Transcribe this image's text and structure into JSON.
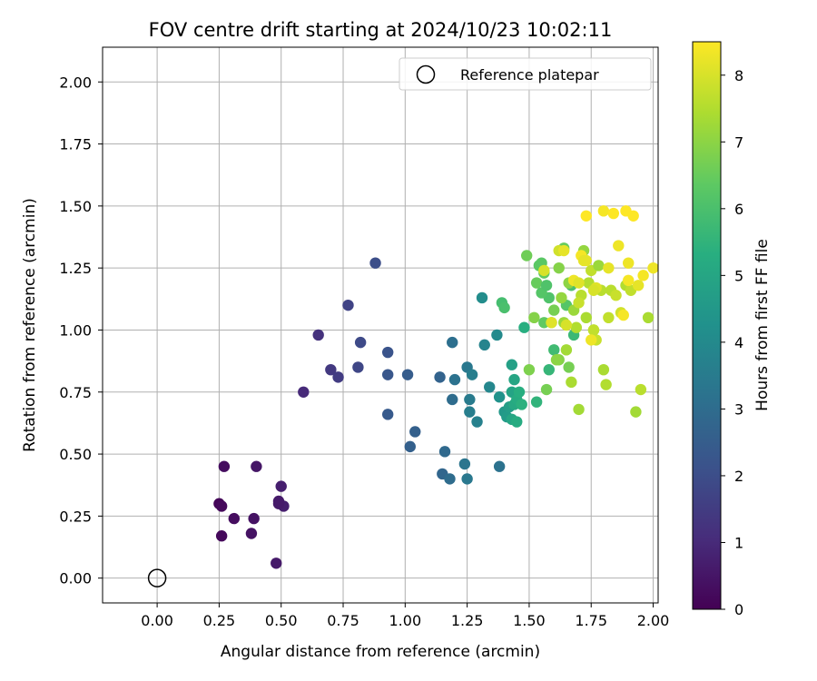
{
  "chart_data": {
    "type": "scatter",
    "title": "FOV centre drift starting at 2024/10/23 10:02:11",
    "xlabel": "Angular distance from reference (arcmin)",
    "ylabel": "Rotation from reference (arcmin)",
    "colorbar_label": "Hours from first FF file",
    "xlim": [
      -0.22,
      2.02
    ],
    "ylim": [
      -0.1,
      2.14
    ],
    "x_ticks": [
      "0.00",
      "0.25",
      "0.50",
      "0.75",
      "1.00",
      "1.25",
      "1.50",
      "1.75",
      "2.00"
    ],
    "y_ticks": [
      "0.00",
      "0.25",
      "0.50",
      "0.75",
      "1.00",
      "1.25",
      "1.50",
      "1.75",
      "2.00"
    ],
    "colorbar_ticks": [
      "0",
      "1",
      "2",
      "3",
      "4",
      "5",
      "6",
      "7",
      "8"
    ],
    "colorbar_range": [
      0,
      8.5
    ],
    "colormap": "viridis",
    "grid": true,
    "legend_position": "top-right",
    "legend_entry": "Reference platepar",
    "reference_point": {
      "x": 0.0,
      "y": 0.0
    },
    "series": [
      {
        "x": [
          0.25,
          0.26,
          0.27,
          0.31,
          0.38,
          0.39,
          0.4,
          0.48,
          0.49,
          0.5,
          0.51,
          0.26,
          0.49
        ],
        "y": [
          0.3,
          0.29,
          0.45,
          0.24,
          0.18,
          0.24,
          0.45,
          0.06,
          0.31,
          0.37,
          0.29,
          0.17,
          0.3
        ],
        "c": [
          0.1,
          0.2,
          0.3,
          0.3,
          0.4,
          0.4,
          0.5,
          0.6,
          0.6,
          0.7,
          0.7,
          0.2,
          0.6
        ]
      },
      {
        "x": [
          0.59,
          0.65,
          0.7,
          0.73,
          0.77,
          0.81,
          0.82,
          0.88,
          0.93,
          0.93,
          0.93,
          1.01
        ],
        "y": [
          0.75,
          0.98,
          0.84,
          0.81,
          1.1,
          0.85,
          0.95,
          1.27,
          0.91,
          0.82,
          0.66,
          0.82
        ],
        "c": [
          1.0,
          1.2,
          1.4,
          1.5,
          1.7,
          1.8,
          1.9,
          2.0,
          2.2,
          2.3,
          2.4,
          2.5
        ]
      },
      {
        "x": [
          1.02,
          1.04,
          1.14,
          1.15,
          1.16,
          1.18,
          1.19,
          1.19,
          1.2,
          1.24,
          1.25,
          1.25,
          1.26,
          1.26,
          1.27,
          1.29,
          1.31,
          1.32,
          1.34,
          1.37,
          1.38
        ],
        "y": [
          0.53,
          0.59,
          0.81,
          0.42,
          0.51,
          0.4,
          0.72,
          0.95,
          0.8,
          0.46,
          0.4,
          0.85,
          0.72,
          0.67,
          0.82,
          0.63,
          1.13,
          0.94,
          0.77,
          0.98,
          0.45
        ],
        "c": [
          2.6,
          2.6,
          2.7,
          2.8,
          2.9,
          3.0,
          3.0,
          3.1,
          3.2,
          3.3,
          3.4,
          3.4,
          3.5,
          3.6,
          3.6,
          3.7,
          4.1,
          3.8,
          3.9,
          4.0,
          3.2
        ]
      },
      {
        "x": [
          1.38,
          1.39,
          1.4,
          1.4,
          1.41,
          1.42,
          1.43,
          1.43,
          1.43,
          1.44,
          1.44,
          1.45,
          1.45,
          1.46,
          1.47,
          1.48,
          1.49,
          1.5,
          1.52,
          1.53,
          1.55,
          1.56,
          1.57,
          1.58,
          1.58,
          1.6,
          1.62,
          1.64,
          1.65,
          1.66,
          1.67,
          1.68
        ],
        "y": [
          0.73,
          1.11,
          1.09,
          0.67,
          0.65,
          0.69,
          0.86,
          0.75,
          0.64,
          0.8,
          0.7,
          0.72,
          0.63,
          0.75,
          0.7,
          1.01,
          1.3,
          0.84,
          1.05,
          0.71,
          1.27,
          1.03,
          0.76,
          0.84,
          1.13,
          0.92,
          0.88,
          1.33,
          1.1,
          0.85,
          1.18,
          0.98
        ],
        "c": [
          4.3,
          5.9,
          6.0,
          4.5,
          4.6,
          4.7,
          4.8,
          4.9,
          5.0,
          5.0,
          5.1,
          5.2,
          5.2,
          5.3,
          5.4,
          5.3,
          6.6,
          6.8,
          6.9,
          5.5,
          6.3,
          6.4,
          6.7,
          5.6,
          6.1,
          5.8,
          6.9,
          6.5,
          6.2,
          6.7,
          6.0,
          5.7
        ]
      },
      {
        "x": [
          1.53,
          1.54,
          1.55,
          1.56,
          1.57,
          1.59,
          1.6,
          1.61,
          1.62,
          1.63,
          1.64,
          1.65,
          1.66,
          1.67,
          1.68,
          1.69,
          1.7,
          1.71,
          1.72,
          1.73,
          1.74,
          1.75,
          1.76,
          1.77,
          1.78,
          1.79,
          1.8,
          1.81,
          1.82,
          1.83,
          1.85,
          1.87,
          1.89,
          1.91,
          1.93,
          1.95,
          1.98,
          1.62,
          1.7,
          1.76
        ],
        "y": [
          1.19,
          1.26,
          1.15,
          1.23,
          1.18,
          1.03,
          1.08,
          0.88,
          1.25,
          1.13,
          1.03,
          0.92,
          1.19,
          0.79,
          1.08,
          1.01,
          0.68,
          1.14,
          1.32,
          1.05,
          1.19,
          1.24,
          1.0,
          0.96,
          1.26,
          1.16,
          0.84,
          0.78,
          1.05,
          1.16,
          1.14,
          1.07,
          1.18,
          1.16,
          0.67,
          0.76,
          1.05,
          1.32,
          1.11,
          1.0
        ],
        "c": [
          6.5,
          6.3,
          6.2,
          6.4,
          6.1,
          6.8,
          6.7,
          7.0,
          6.9,
          7.1,
          7.2,
          7.3,
          7.0,
          7.4,
          7.2,
          7.5,
          7.3,
          7.6,
          7.1,
          7.4,
          7.5,
          7.7,
          7.3,
          7.8,
          7.2,
          7.6,
          7.4,
          7.5,
          7.7,
          7.6,
          7.8,
          7.9,
          7.5,
          7.7,
          7.3,
          7.6,
          7.4,
          7.9,
          7.8,
          7.7
        ]
      },
      {
        "x": [
          1.56,
          1.59,
          1.64,
          1.65,
          1.68,
          1.7,
          1.71,
          1.72,
          1.73,
          1.75,
          1.77,
          1.8,
          1.82,
          1.84,
          1.86,
          1.88,
          1.89,
          1.9,
          1.9,
          1.92,
          1.94,
          1.96,
          2.0,
          1.76,
          1.73
        ],
        "y": [
          1.24,
          1.03,
          1.32,
          1.02,
          1.2,
          1.19,
          1.3,
          1.28,
          1.46,
          0.96,
          1.17,
          1.48,
          1.25,
          1.47,
          1.34,
          1.06,
          1.48,
          1.27,
          1.2,
          1.46,
          1.18,
          1.22,
          1.25,
          1.16,
          1.28
        ],
        "c": [
          8.0,
          8.1,
          8.2,
          8.0,
          8.3,
          8.1,
          8.4,
          8.2,
          8.5,
          8.3,
          8.1,
          8.4,
          8.2,
          8.5,
          8.3,
          8.4,
          8.5,
          8.3,
          8.4,
          8.5,
          8.2,
          8.4,
          8.3,
          8.0,
          8.2
        ]
      }
    ]
  }
}
